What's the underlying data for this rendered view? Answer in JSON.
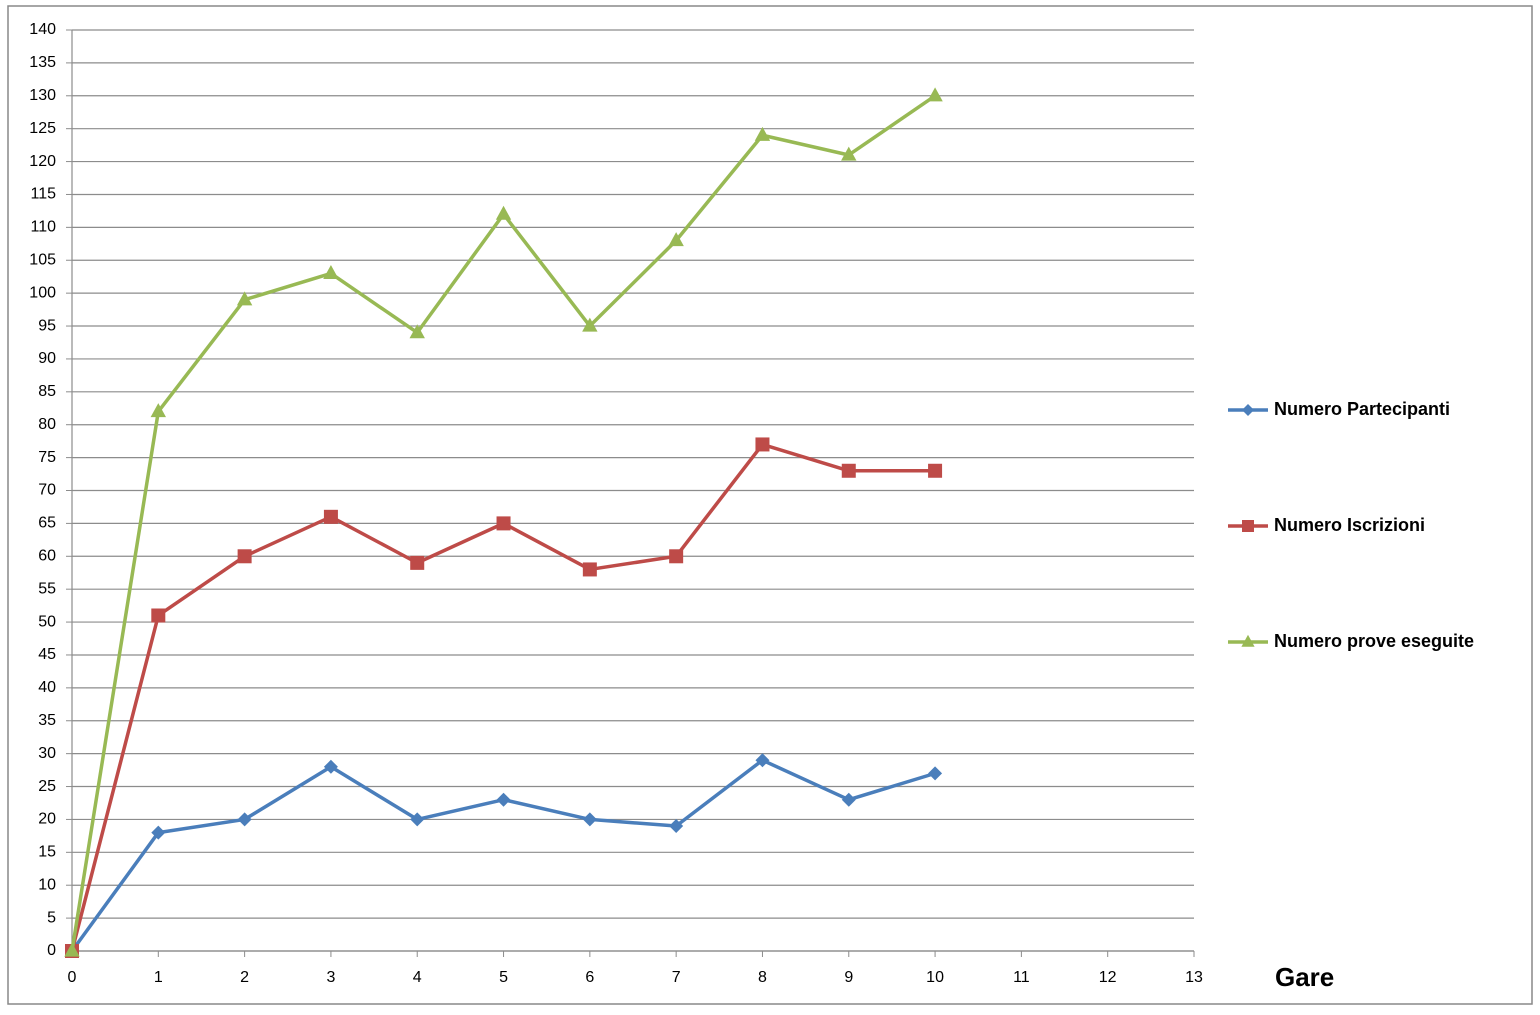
{
  "chart_data": {
    "type": "line",
    "x_label": "Gare",
    "x": [
      0,
      1,
      2,
      3,
      4,
      5,
      6,
      7,
      8,
      9,
      10
    ],
    "series": [
      {
        "name": "Numero Partecipanti",
        "color": "#4a7ebb",
        "marker": "diamond",
        "values": [
          0,
          18,
          20,
          28,
          20,
          23,
          20,
          19,
          29,
          23,
          27
        ]
      },
      {
        "name": "Numero Iscrizioni",
        "color": "#be4b48",
        "marker": "square",
        "values": [
          0,
          51,
          60,
          66,
          59,
          65,
          58,
          60,
          77,
          73,
          73
        ]
      },
      {
        "name": "Numero prove eseguite",
        "color": "#98b954",
        "marker": "triangle",
        "values": [
          0,
          82,
          99,
          103,
          94,
          112,
          95,
          108,
          124,
          121,
          130
        ]
      }
    ],
    "xlim": [
      0,
      13
    ],
    "xticks": [
      0,
      1,
      2,
      3,
      4,
      5,
      6,
      7,
      8,
      9,
      10,
      11,
      12,
      13
    ],
    "ylim": [
      0,
      140
    ],
    "yticks": [
      0,
      5,
      10,
      15,
      20,
      25,
      30,
      35,
      40,
      45,
      50,
      55,
      60,
      65,
      70,
      75,
      80,
      85,
      90,
      95,
      100,
      105,
      110,
      115,
      120,
      125,
      130,
      135,
      140
    ],
    "grid": true,
    "legend": "right"
  }
}
